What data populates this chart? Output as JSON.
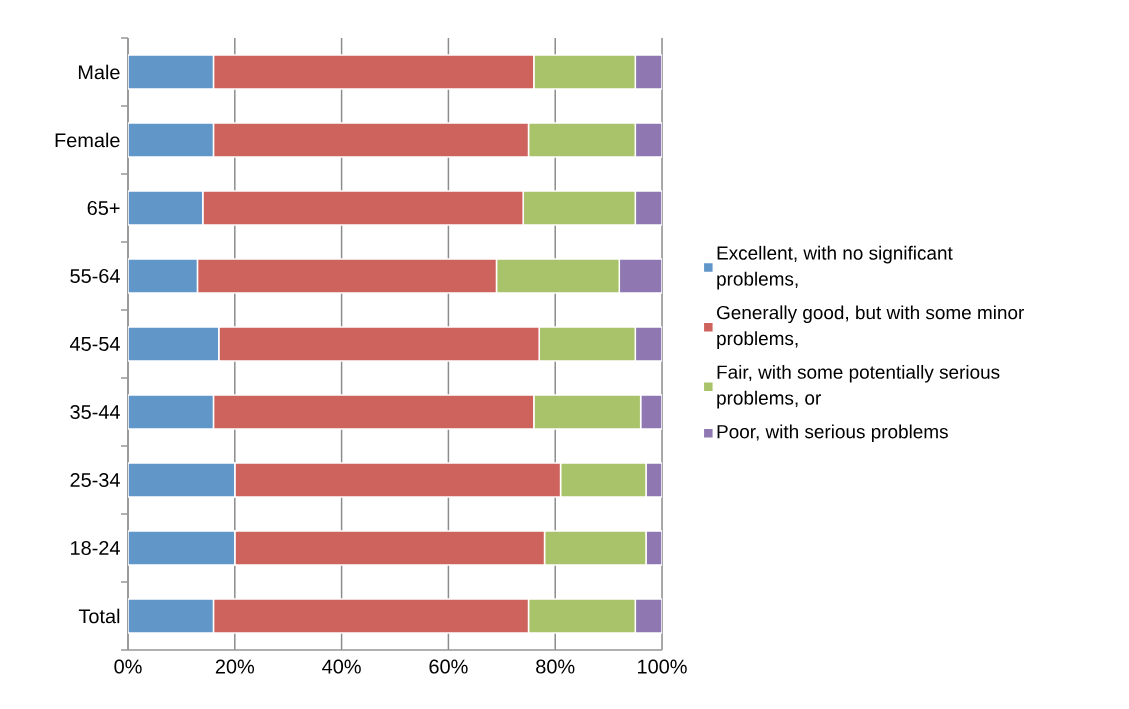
{
  "chart_data": {
    "type": "bar",
    "orientation": "horizontal",
    "stacked": true,
    "categories": [
      "Male",
      "Female",
      "65+",
      "55-64",
      "45-54",
      "35-44",
      "25-34",
      "18-24",
      "Total"
    ],
    "series": [
      {
        "name": "Excellent, with no significant problems,",
        "color": "#6096c8",
        "values": [
          16,
          16,
          14,
          13,
          17,
          16,
          20,
          20,
          16
        ]
      },
      {
        "name": "Generally good, but with some minor problems,",
        "color": "#cd635c",
        "values": [
          60,
          59,
          60,
          56,
          60,
          60,
          61,
          58,
          59
        ]
      },
      {
        "name": "Fair, with some potentially serious problems, or",
        "color": "#a8c36a",
        "values": [
          19,
          20,
          21,
          23,
          18,
          20,
          16,
          19,
          20
        ]
      },
      {
        "name": "Poor, with serious problems",
        "color": "#8f77b1",
        "values": [
          5,
          5,
          5,
          8,
          5,
          4,
          3,
          3,
          5
        ]
      }
    ],
    "xlim": [
      0,
      100
    ],
    "xticks": [
      {
        "value": 0,
        "label": "0%"
      },
      {
        "value": 20,
        "label": "20%"
      },
      {
        "value": 40,
        "label": "40%"
      },
      {
        "value": 60,
        "label": "60%"
      },
      {
        "value": 80,
        "label": "80%"
      },
      {
        "value": 100,
        "label": "100%"
      }
    ],
    "grid": "x",
    "legend": "right"
  }
}
